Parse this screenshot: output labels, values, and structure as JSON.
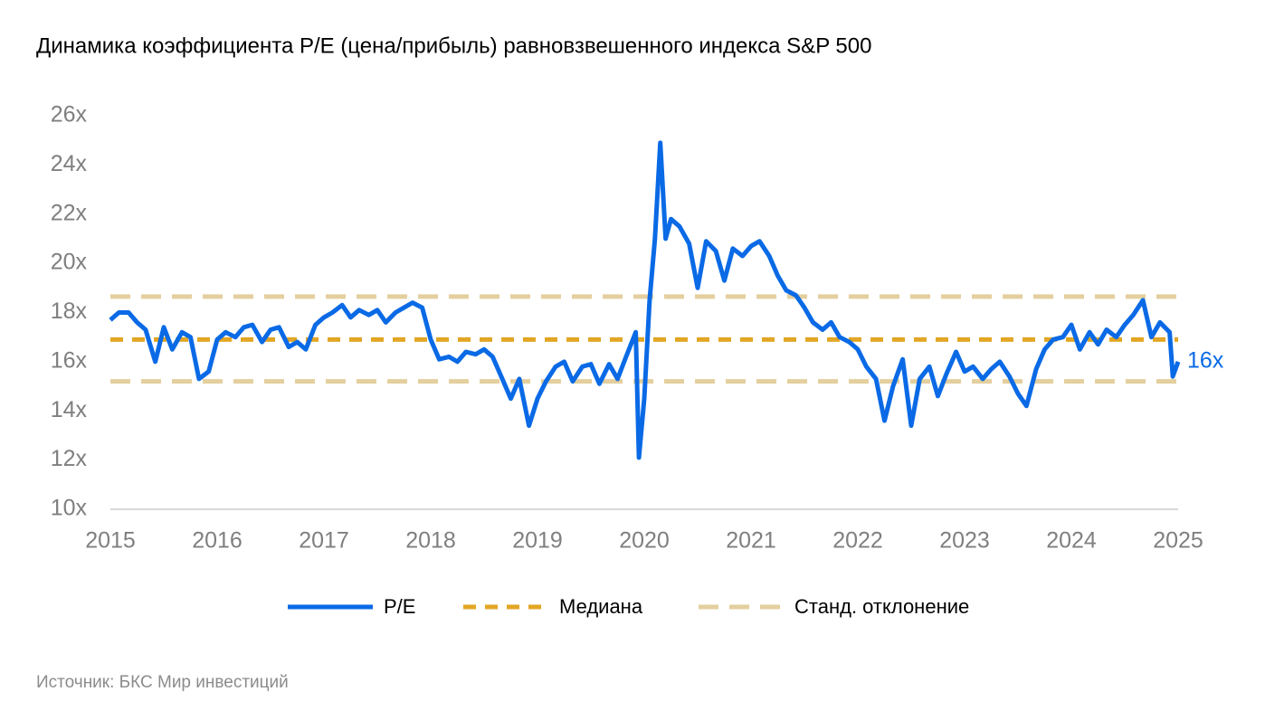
{
  "chart_data": {
    "type": "line",
    "title": "Динамика коэффициента P/E (цена/прибыль) равновзвешенного индекса S&P 500",
    "source": "Источник: БКС Мир инвестиций",
    "x": [
      2015.0,
      2015.08,
      2015.17,
      2015.25,
      2015.33,
      2015.42,
      2015.5,
      2015.58,
      2015.67,
      2015.75,
      2015.83,
      2015.92,
      2016.0,
      2016.08,
      2016.17,
      2016.25,
      2016.33,
      2016.42,
      2016.5,
      2016.58,
      2016.67,
      2016.75,
      2016.83,
      2016.92,
      2017.0,
      2017.08,
      2017.17,
      2017.25,
      2017.33,
      2017.42,
      2017.5,
      2017.58,
      2017.67,
      2017.75,
      2017.83,
      2017.92,
      2018.0,
      2018.08,
      2018.17,
      2018.25,
      2018.33,
      2018.42,
      2018.5,
      2018.58,
      2018.67,
      2018.75,
      2018.83,
      2018.92,
      2019.0,
      2019.08,
      2019.17,
      2019.25,
      2019.33,
      2019.42,
      2019.5,
      2019.58,
      2019.67,
      2019.75,
      2019.83,
      2019.92,
      2019.95,
      2020.0,
      2020.05,
      2020.1,
      2020.15,
      2020.2,
      2020.25,
      2020.33,
      2020.42,
      2020.5,
      2020.58,
      2020.67,
      2020.75,
      2020.83,
      2020.92,
      2021.0,
      2021.08,
      2021.17,
      2021.25,
      2021.33,
      2021.42,
      2021.5,
      2021.58,
      2021.67,
      2021.75,
      2021.83,
      2021.92,
      2022.0,
      2022.08,
      2022.17,
      2022.25,
      2022.33,
      2022.42,
      2022.5,
      2022.58,
      2022.67,
      2022.75,
      2022.83,
      2022.92,
      2023.0,
      2023.08,
      2023.17,
      2023.25,
      2023.33,
      2023.42,
      2023.5,
      2023.58,
      2023.67,
      2023.75,
      2023.83,
      2023.92,
      2024.0,
      2024.08,
      2024.17,
      2024.25,
      2024.33,
      2024.42,
      2024.5,
      2024.58,
      2024.67,
      2024.75,
      2024.83,
      2024.92,
      2024.95,
      2025.0
    ],
    "series": [
      {
        "name": "P/E",
        "color": "#0a6ae6",
        "values": [
          17.7,
          18.0,
          18.0,
          17.6,
          17.3,
          16.0,
          17.4,
          16.5,
          17.2,
          17.0,
          15.3,
          15.6,
          16.9,
          17.2,
          17.0,
          17.4,
          17.5,
          16.8,
          17.3,
          17.4,
          16.6,
          16.8,
          16.5,
          17.5,
          17.8,
          18.0,
          18.3,
          17.8,
          18.1,
          17.9,
          18.1,
          17.6,
          18.0,
          18.2,
          18.4,
          18.2,
          16.9,
          16.1,
          16.2,
          16.0,
          16.4,
          16.3,
          16.5,
          16.2,
          15.3,
          14.5,
          15.3,
          13.4,
          14.5,
          15.2,
          15.8,
          16.0,
          15.2,
          15.8,
          15.9,
          15.1,
          15.9,
          15.3,
          16.2,
          17.2,
          12.1,
          14.5,
          18.5,
          21.0,
          24.9,
          21.0,
          21.8,
          21.5,
          20.8,
          19.0,
          20.9,
          20.5,
          19.3,
          20.6,
          20.3,
          20.7,
          20.9,
          20.3,
          19.5,
          18.9,
          18.7,
          18.2,
          17.6,
          17.3,
          17.6,
          17.0,
          16.8,
          16.5,
          15.8,
          15.3,
          13.6,
          15.0,
          16.1,
          13.4,
          15.3,
          15.8,
          14.6,
          15.5,
          16.4,
          15.6,
          15.8,
          15.3,
          15.7,
          16.0,
          15.4,
          14.7,
          14.2,
          15.7,
          16.5,
          16.9,
          17.0,
          17.5,
          16.5,
          17.2,
          16.7,
          17.3,
          17.0,
          17.5,
          17.9,
          18.5,
          17.0,
          17.6,
          17.2,
          15.4,
          16.0
        ],
        "value_labels": [
          null,
          null,
          null,
          null,
          null,
          null,
          null,
          null,
          null,
          null,
          null,
          null,
          null,
          null,
          null,
          null,
          null,
          null,
          null,
          null,
          null,
          null,
          null,
          null,
          null,
          null,
          null,
          null,
          null,
          null,
          null,
          null,
          null,
          null,
          null,
          null,
          null,
          null,
          null,
          null,
          null,
          null,
          null,
          null,
          null,
          null,
          null,
          null,
          null,
          null,
          null,
          null,
          null,
          null,
          null,
          null,
          null,
          null,
          null,
          null,
          null,
          null,
          null,
          null,
          null,
          null,
          null,
          null,
          null,
          null,
          null,
          null,
          null,
          null,
          null,
          null,
          null,
          null,
          null,
          null,
          null,
          null,
          null,
          null,
          null,
          null,
          null,
          null,
          null,
          null,
          null,
          null,
          null,
          null,
          null,
          null,
          null,
          null,
          null,
          null,
          null,
          null,
          null,
          null,
          null,
          null,
          null,
          null,
          null,
          null,
          null,
          null,
          null,
          null,
          null,
          null,
          null,
          null,
          null,
          null,
          null,
          null,
          null,
          null,
          "16x"
        ]
      }
    ],
    "hlines": [
      {
        "name": "Медиана",
        "color": "#e2a624",
        "values": [
          16.9
        ]
      },
      {
        "name": "Станд. отклонение",
        "color": "#e4cf9f",
        "values": [
          18.65,
          15.2
        ]
      }
    ],
    "xlim": [
      2015,
      2025
    ],
    "xticks": [
      2015,
      2016,
      2017,
      2018,
      2019,
      2020,
      2021,
      2022,
      2023,
      2024,
      2025
    ],
    "ylim": [
      10,
      26
    ],
    "yticks": [
      {
        "value": 10,
        "label": "10x"
      },
      {
        "value": 12,
        "label": "12x"
      },
      {
        "value": 14,
        "label": "14x"
      },
      {
        "value": 16,
        "label": "16x"
      },
      {
        "value": 18,
        "label": "18x"
      },
      {
        "value": 20,
        "label": "20x"
      },
      {
        "value": 22,
        "label": "22x"
      },
      {
        "value": 24,
        "label": "24x"
      },
      {
        "value": 26,
        "label": "26x"
      }
    ]
  }
}
